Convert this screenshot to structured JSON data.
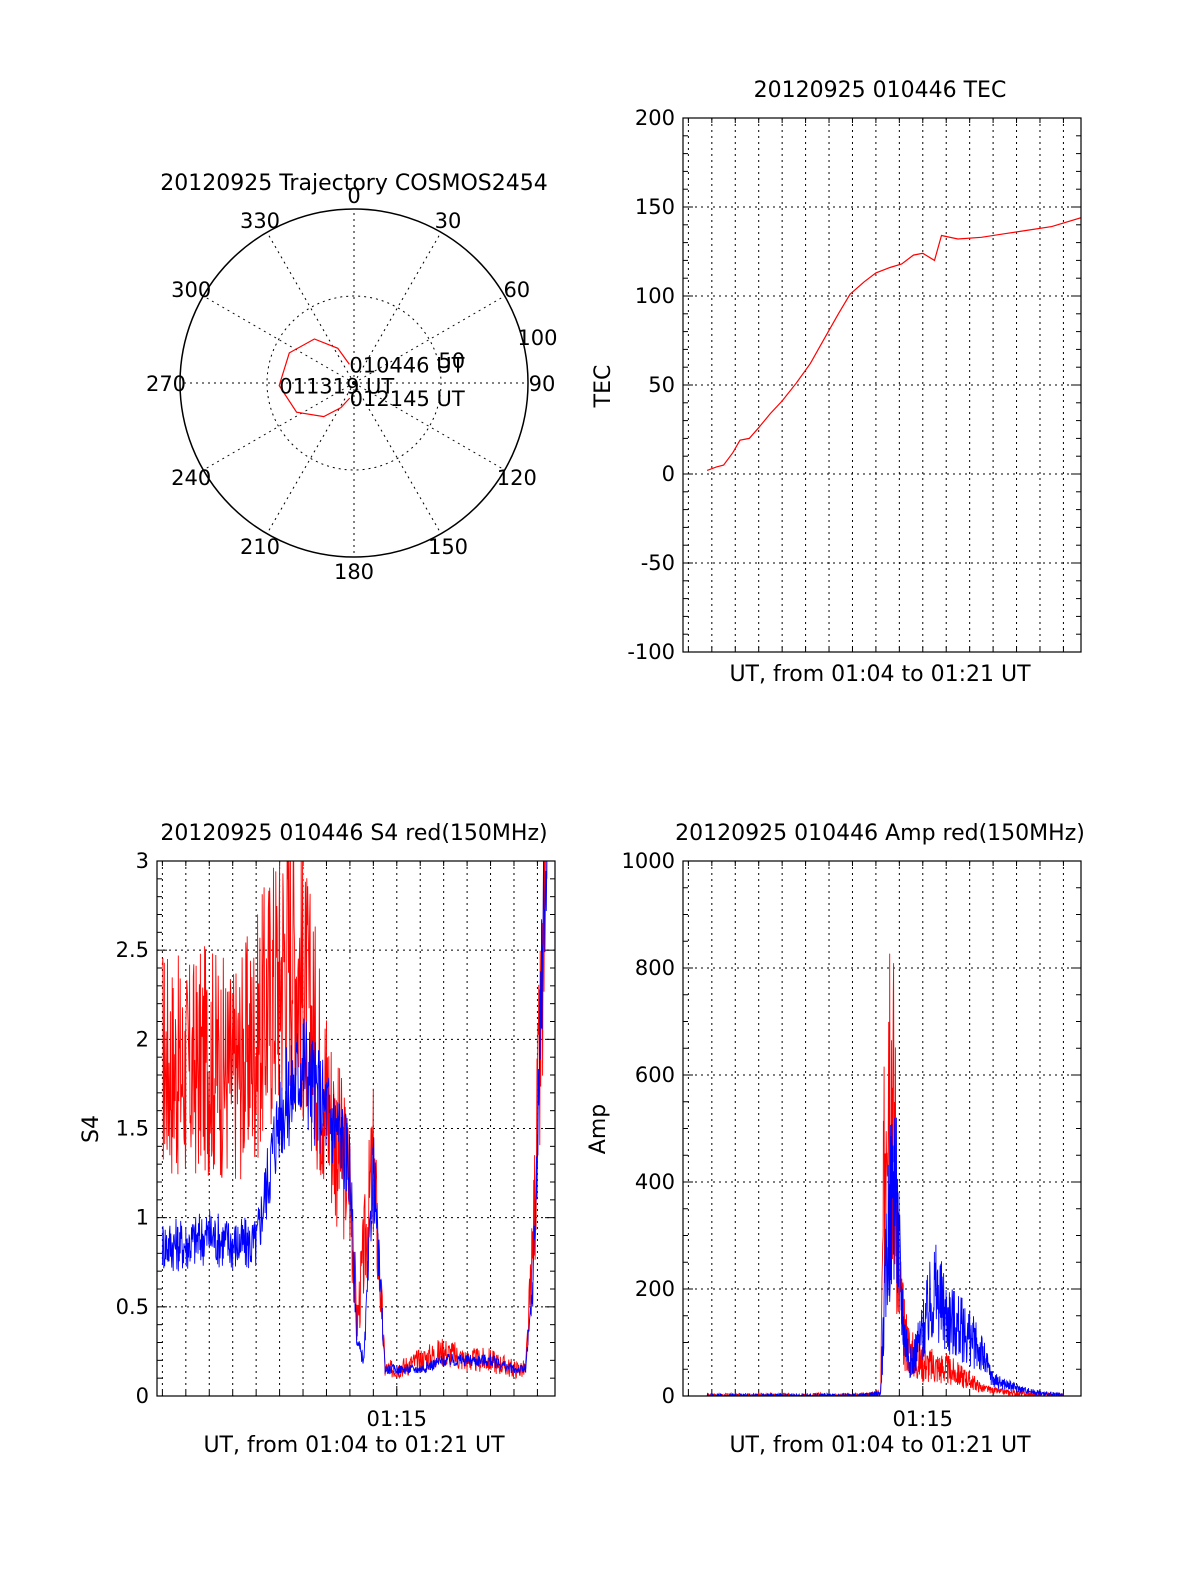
{
  "chart_data": [
    {
      "id": "trajectory",
      "type": "polar-line",
      "title": "20120925 Trajectory COSMOS2454",
      "angle_labels": [
        "0",
        "30",
        "60",
        "90",
        "120",
        "150",
        "180",
        "210",
        "240",
        "270",
        "300",
        "330"
      ],
      "radial_tick_labels": [
        "50",
        "100"
      ],
      "radial_ticks": [
        50,
        100
      ],
      "radial_max": 100,
      "color": "#ff0000",
      "series": [
        {
          "points": [
            {
              "az": 346,
              "el": 11
            },
            {
              "az": 335,
              "el": 22
            },
            {
              "az": 318,
              "el": 34
            },
            {
              "az": 295,
              "el": 41
            },
            {
              "az": 268,
              "el": 43
            },
            {
              "az": 243,
              "el": 37
            },
            {
              "az": 222,
              "el": 26
            },
            {
              "az": 208,
              "el": 16
            },
            {
              "az": 196,
              "el": 9
            }
          ]
        }
      ],
      "annotations": [
        {
          "text": "010446 UT",
          "az": 346,
          "el": 11
        },
        {
          "text": "011319 UT",
          "az": 268,
          "el": 43
        },
        {
          "text": "012145 UT",
          "az": 196,
          "el": 9
        }
      ]
    },
    {
      "id": "tec",
      "type": "line",
      "title": "20120925 010446 TEC",
      "ylabel": "TEC",
      "xlabel": "UT, from 01:04 to 01:21 UT",
      "xlim": [
        4.77,
        21.75
      ],
      "ylim": [
        -100,
        200
      ],
      "y_ticks": [
        -100,
        -50,
        0,
        50,
        100,
        150,
        200
      ],
      "x_tick_labels": [],
      "grid": true,
      "series": [
        {
          "color": "#ff0000",
          "x": [
            5.8,
            6.2,
            6.5,
            6.9,
            7.2,
            7.6,
            8.0,
            8.5,
            9.0,
            9.6,
            10.2,
            10.8,
            11.4,
            11.9,
            12.5,
            13.0,
            13.6,
            14.1,
            14.6,
            15.0,
            15.5,
            15.8,
            16.5,
            17.5,
            18.5,
            19.5,
            20.5,
            21.75
          ],
          "y": [
            2,
            4,
            5,
            12,
            19,
            20,
            26,
            34,
            41,
            51,
            62,
            76,
            90,
            101,
            108,
            113,
            116,
            118,
            123,
            124,
            120,
            134,
            132,
            133,
            135,
            137,
            139,
            144
          ]
        }
      ]
    },
    {
      "id": "s4",
      "type": "line",
      "title": "20120925 010446 S4 red(150MHz)",
      "ylabel": "S4",
      "xlabel": "UT, from 01:04 to 01:21 UT",
      "xlim": [
        4.77,
        21.75
      ],
      "ylim": [
        0,
        3
      ],
      "y_ticks": [
        0,
        0.5,
        1,
        1.5,
        2,
        2.5,
        3
      ],
      "y_tick_labels": [
        "0",
        "0.5",
        "1",
        "1.5",
        "2",
        "2.5",
        "3"
      ],
      "x_tick_labels": [
        {
          "x": 15,
          "label": "01:15"
        }
      ],
      "grid": true,
      "series": [
        {
          "color": "#ff0000",
          "x": [
            5.0,
            6.0,
            7.0,
            8.0,
            9.0,
            10.0,
            10.5,
            11.0,
            11.5,
            12.0,
            12.5,
            13.0,
            13.3,
            13.6,
            14.0,
            14.5,
            15.0,
            16.0,
            17.0,
            18.0,
            19.0,
            20.0,
            20.5,
            20.8,
            21.0,
            21.2,
            21.4
          ],
          "y": [
            1.9,
            1.8,
            1.9,
            1.8,
            2.0,
            2.4,
            2.6,
            2.3,
            2.0,
            1.7,
            1.4,
            1.2,
            0.4,
            0.8,
            1.3,
            0.15,
            0.15,
            0.2,
            0.25,
            0.2,
            0.2,
            0.15,
            0.15,
            0.8,
            1.5,
            2.2,
            2.9
          ]
        },
        {
          "color": "#0000ff",
          "x": [
            5.0,
            6.0,
            7.0,
            8.0,
            9.0,
            10.0,
            10.5,
            11.0,
            11.5,
            12.0,
            12.5,
            13.0,
            13.3,
            13.6,
            14.0,
            14.5,
            15.0,
            16.0,
            17.0,
            18.0,
            19.0,
            20.0,
            20.5,
            20.8,
            21.0,
            21.2,
            21.4
          ],
          "y": [
            0.85,
            0.85,
            0.9,
            0.85,
            0.85,
            1.6,
            1.7,
            1.9,
            1.7,
            1.6,
            1.5,
            1.3,
            0.3,
            0.2,
            1.3,
            0.15,
            0.15,
            0.15,
            0.2,
            0.2,
            0.2,
            0.15,
            0.15,
            0.6,
            1.4,
            2.5,
            3.0
          ]
        }
      ]
    },
    {
      "id": "amp",
      "type": "line",
      "title": "20120925 010446 Amp red(150MHz)",
      "ylabel": "Amp",
      "xlabel": "UT, from 01:04 to 01:21 UT",
      "xlim": [
        4.77,
        21.75
      ],
      "ylim": [
        0,
        1000
      ],
      "y_ticks": [
        0,
        200,
        400,
        600,
        800,
        1000
      ],
      "x_tick_labels": [
        {
          "x": 15,
          "label": "01:15"
        }
      ],
      "grid": true,
      "series": [
        {
          "color": "#ff0000",
          "x": [
            5.8,
            10.0,
            12.5,
            13.2,
            13.5,
            13.8,
            14.0,
            14.2,
            14.5,
            15.0,
            16.0,
            17.0,
            17.5,
            18.0,
            19.0,
            20.0,
            21.0
          ],
          "y": [
            0,
            0,
            0,
            5,
            800,
            500,
            200,
            120,
            80,
            60,
            50,
            30,
            15,
            10,
            5,
            2,
            0
          ]
        },
        {
          "color": "#0000ff",
          "x": [
            5.8,
            10.0,
            12.5,
            13.2,
            13.5,
            13.8,
            14.0,
            14.2,
            14.5,
            15.0,
            15.5,
            16.0,
            17.0,
            17.5,
            18.0,
            19.0,
            20.0,
            21.0
          ],
          "y": [
            0,
            0,
            0,
            5,
            300,
            420,
            250,
            120,
            60,
            120,
            200,
            150,
            110,
            80,
            30,
            15,
            5,
            0
          ]
        }
      ]
    }
  ]
}
